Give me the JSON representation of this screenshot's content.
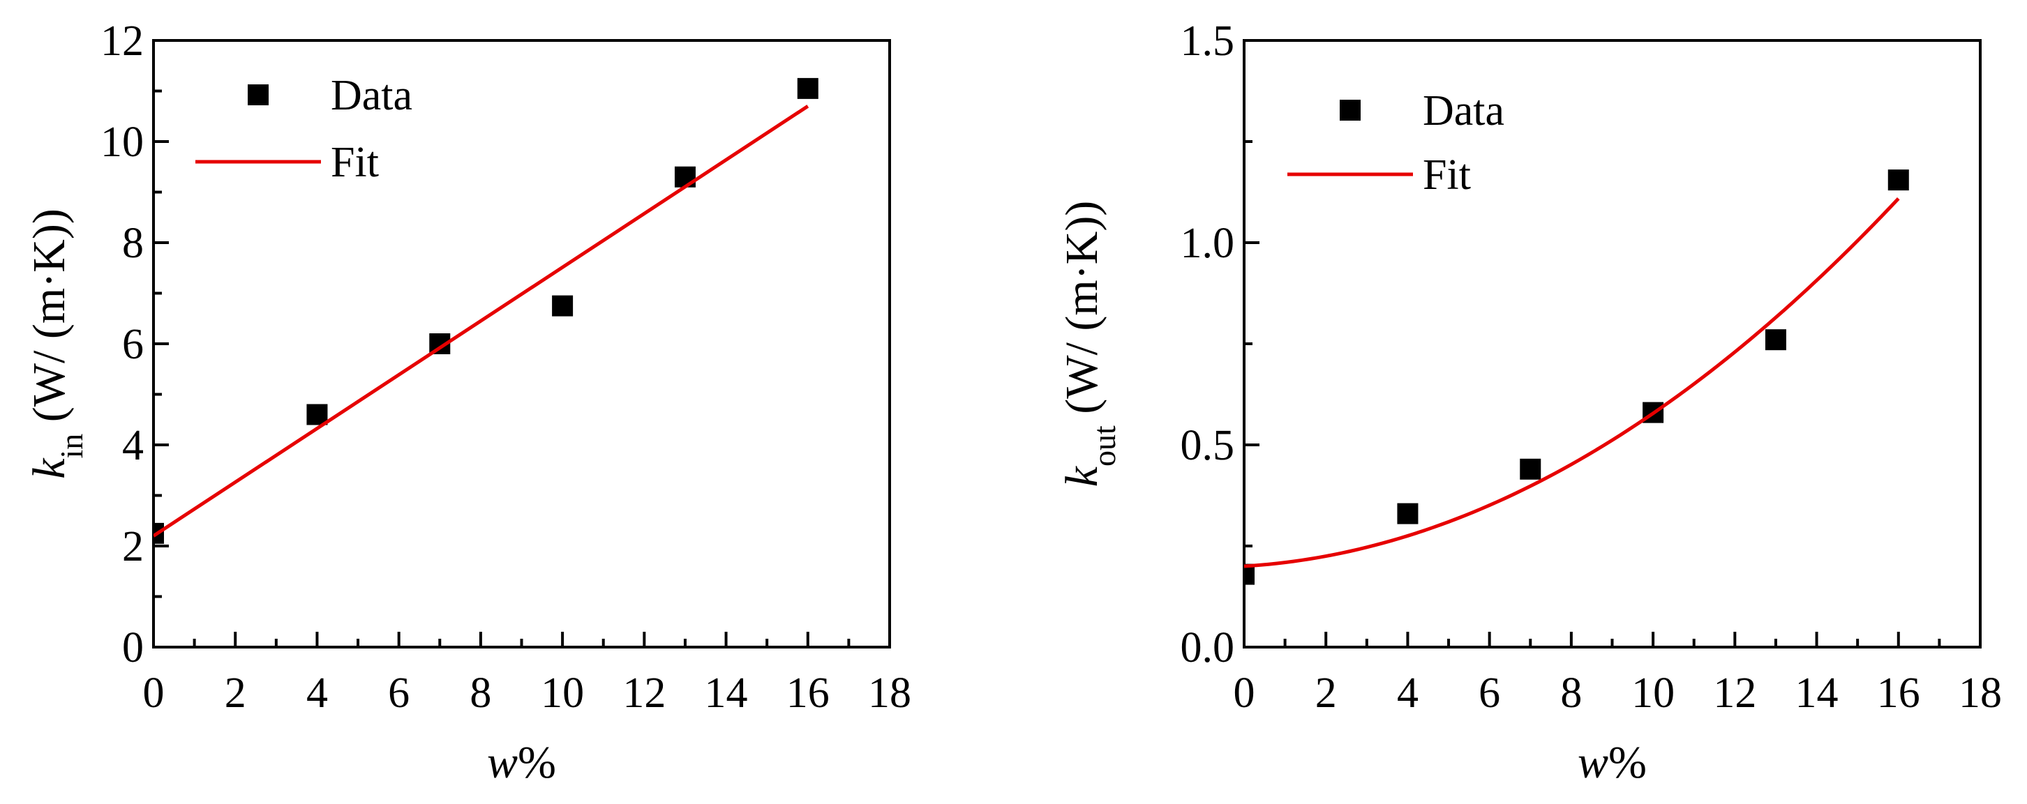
{
  "chart_data": [
    {
      "type": "scatter",
      "xlabel": "w%",
      "ylabel": {
        "symbol": "k",
        "subscript": "in",
        "units": " (W/ (m·K))"
      },
      "xlim": [
        0,
        18
      ],
      "ylim": [
        0,
        12
      ],
      "x_ticks": [
        0,
        2,
        4,
        6,
        8,
        10,
        12,
        14,
        16,
        18
      ],
      "x_tick_labels": [
        "0",
        "2",
        "4",
        "6",
        "8",
        "10",
        "12",
        "14",
        "16",
        "18"
      ],
      "y_ticks": [
        0,
        2,
        4,
        6,
        8,
        10,
        12
      ],
      "y_tick_labels": [
        "0",
        "2",
        "4",
        "6",
        "8",
        "10",
        "12"
      ],
      "series": [
        {
          "name": "Data",
          "kind": "marker",
          "color": "#000000",
          "x": [
            0,
            4,
            7,
            10,
            13,
            16
          ],
          "y": [
            2.25,
            4.6,
            6.0,
            6.75,
            9.3,
            11.05
          ]
        },
        {
          "name": "Fit",
          "kind": "line",
          "color": "#e60000",
          "fit": "linear",
          "x": [
            0,
            16
          ],
          "y": [
            2.2,
            10.7
          ]
        }
      ],
      "legend": {
        "position": "top-left",
        "entries": [
          "Data",
          "Fit"
        ]
      },
      "grid": false
    },
    {
      "type": "scatter",
      "xlabel": "w%",
      "ylabel": {
        "symbol": "k",
        "subscript": "out",
        "units": " (W/ (m·K))"
      },
      "xlim": [
        0,
        18
      ],
      "ylim": [
        0,
        1.5
      ],
      "x_ticks": [
        0,
        2,
        4,
        6,
        8,
        10,
        12,
        14,
        16,
        18
      ],
      "x_tick_labels": [
        "0",
        "2",
        "4",
        "6",
        "8",
        "10",
        "12",
        "14",
        "16",
        "18"
      ],
      "y_ticks": [
        0,
        0.5,
        1.0,
        1.5
      ],
      "y_tick_labels": [
        "0.0",
        "0.5",
        "1.0",
        "1.5"
      ],
      "series": [
        {
          "name": "Data",
          "kind": "marker",
          "color": "#000000",
          "x": [
            0,
            4,
            7,
            10,
            13,
            16
          ],
          "y": [
            0.18,
            0.33,
            0.44,
            0.58,
            0.76,
            1.155
          ]
        },
        {
          "name": "Fit",
          "kind": "line",
          "color": "#e60000",
          "fit": "quadratic",
          "coefficients": [
            0.2,
            0.0061,
            0.00317
          ],
          "x_range": [
            0,
            16
          ]
        }
      ],
      "legend": {
        "position": "top-left",
        "entries": [
          "Data",
          "Fit"
        ]
      },
      "grid": false
    }
  ]
}
